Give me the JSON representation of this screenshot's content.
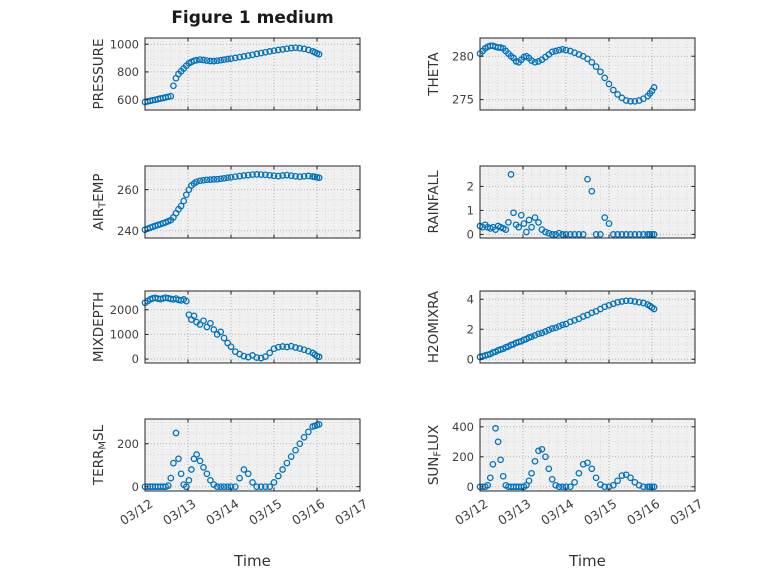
{
  "figure": {
    "title": "Figure 1 medium",
    "xlabel": "Time",
    "marker_color": "#0072BD",
    "axis_color": "#262626",
    "tick_label_color": "#404040",
    "label_color": "#333333",
    "plot_bg": "#f0f0f0",
    "major_grid_color": "#b5b5b5",
    "minor_grid_color": "#d9d9d9",
    "xtick_labels": [
      "03/12",
      "03/13",
      "03/14",
      "03/15",
      "03/16",
      "03/17"
    ],
    "x_minor_step": 0.2
  },
  "x_days": [
    0,
    0.06,
    0.12,
    0.18,
    0.24,
    0.3,
    0.36,
    0.42,
    0.48,
    0.54,
    0.6,
    0.66,
    0.72,
    0.78,
    0.84,
    0.9,
    0.96,
    1.02,
    1.08,
    1.14,
    1.2,
    1.28,
    1.36,
    1.44,
    1.52,
    1.6,
    1.68,
    1.76,
    1.84,
    1.92,
    2,
    2.1,
    2.2,
    2.3,
    2.4,
    2.5,
    2.6,
    2.7,
    2.8,
    2.9,
    3,
    3.1,
    3.2,
    3.3,
    3.4,
    3.5,
    3.6,
    3.7,
    3.8,
    3.9,
    3.95,
    4,
    4.05
  ],
  "chart_data": [
    {
      "id": "pressure",
      "type": "scatter",
      "ylabel": {
        "pre": "PRESSURE",
        "sub": "",
        "post": ""
      },
      "ylim": [
        525,
        1045
      ],
      "yticks": [
        600,
        800,
        1000
      ],
      "y_minor_step": 50,
      "xlim": [
        0,
        5
      ],
      "xticks": [
        0,
        1,
        2,
        3,
        4,
        5
      ],
      "show_xtick_labels": false,
      "y": [
        583,
        587,
        591,
        595,
        599,
        604,
        608,
        612,
        616,
        620,
        625,
        700,
        755,
        785,
        805,
        825,
        845,
        862,
        872,
        880,
        885,
        889,
        886,
        882,
        879,
        878,
        881,
        885,
        889,
        893,
        896,
        901,
        906,
        912,
        918,
        924,
        930,
        936,
        942,
        948,
        953,
        958,
        963,
        968,
        972,
        975,
        971,
        966,
        959,
        949,
        941,
        934,
        928
      ]
    },
    {
      "id": "theta",
      "type": "scatter",
      "ylabel": {
        "pre": "THETA",
        "sub": "",
        "post": ""
      },
      "ylim": [
        273.8,
        282.1
      ],
      "yticks": [
        275,
        280
      ],
      "y_minor_step": 1,
      "xlim": [
        0,
        5
      ],
      "xticks": [
        0,
        1,
        2,
        3,
        4,
        5
      ],
      "show_xtick_labels": false,
      "y": [
        280.3,
        280.6,
        280.9,
        281.1,
        281.2,
        281.2,
        281.1,
        281.0,
        281.0,
        280.9,
        280.6,
        280.3,
        280.0,
        279.8,
        279.4,
        279.3,
        279.6,
        279.9,
        280.0,
        279.8,
        279.5,
        279.3,
        279.4,
        279.6,
        279.9,
        280.2,
        280.5,
        280.6,
        280.7,
        280.8,
        280.7,
        280.6,
        280.4,
        280.2,
        280.0,
        279.7,
        279.3,
        278.8,
        278.2,
        277.5,
        276.8,
        276.1,
        275.6,
        275.2,
        274.9,
        274.8,
        274.8,
        274.9,
        275.1,
        275.4,
        275.7,
        276.0,
        276.4
      ]
    },
    {
      "id": "airtemp",
      "type": "scatter",
      "ylabel": {
        "pre": "AIR",
        "sub": "T",
        "post": "EMP"
      },
      "ylim": [
        236.5,
        271.5
      ],
      "yticks": [
        240,
        260
      ],
      "y_minor_step": 5,
      "xlim": [
        0,
        5
      ],
      "xticks": [
        0,
        1,
        2,
        3,
        4,
        5
      ],
      "show_xtick_labels": false,
      "y": [
        240.5,
        241.0,
        241.5,
        242.0,
        242.4,
        242.8,
        243.2,
        243.7,
        244.1,
        244.6,
        245.2,
        246.5,
        248.5,
        250.5,
        252.0,
        254.5,
        257.5,
        260.0,
        262.0,
        263.0,
        263.8,
        264.3,
        264.6,
        264.8,
        264.9,
        265.0,
        265.1,
        265.3,
        265.5,
        265.8,
        266.0,
        266.3,
        266.6,
        266.9,
        267.1,
        267.3,
        267.4,
        267.3,
        267.2,
        267.0,
        266.8,
        266.6,
        266.9,
        267.1,
        266.8,
        266.5,
        266.3,
        266.5,
        266.7,
        266.4,
        266.2,
        266.0,
        265.8
      ]
    },
    {
      "id": "rainfall",
      "type": "scatter",
      "ylabel": {
        "pre": "RAINFALL",
        "sub": "",
        "post": ""
      },
      "ylim": [
        -0.15,
        2.85
      ],
      "yticks": [
        0,
        1,
        2
      ],
      "y_minor_step": 0.5,
      "xlim": [
        0,
        5
      ],
      "xticks": [
        0,
        1,
        2,
        3,
        4,
        5
      ],
      "show_xtick_labels": false,
      "y": [
        0.35,
        0.3,
        0.4,
        0.3,
        0.25,
        0.3,
        0.2,
        0.35,
        0.3,
        0.25,
        0.2,
        0.5,
        2.5,
        0.9,
        0.4,
        0.3,
        0.8,
        0.45,
        0.1,
        0.6,
        0.3,
        0.7,
        0.5,
        0.2,
        0.1,
        0.05,
        0,
        0,
        0.05,
        0,
        0,
        0,
        0,
        0,
        0,
        2.3,
        1.8,
        0,
        0,
        0.7,
        0.45,
        0,
        0,
        0,
        0,
        0,
        0,
        0,
        0,
        0,
        0,
        0,
        0
      ]
    },
    {
      "id": "mixdepth",
      "type": "scatter",
      "ylabel": {
        "pre": "MIXDEPTH",
        "sub": "",
        "post": ""
      },
      "ylim": [
        -160,
        2760
      ],
      "yticks": [
        0,
        1000,
        2000
      ],
      "y_minor_step": 500,
      "xlim": [
        0,
        5
      ],
      "xticks": [
        0,
        1,
        2,
        3,
        4,
        5
      ],
      "show_xtick_labels": false,
      "y": [
        2280,
        2350,
        2420,
        2460,
        2480,
        2450,
        2430,
        2460,
        2490,
        2470,
        2440,
        2420,
        2450,
        2400,
        2380,
        2420,
        2350,
        1800,
        1600,
        1750,
        1500,
        1400,
        1550,
        1300,
        1450,
        1200,
        1000,
        1100,
        850,
        650,
        500,
        300,
        200,
        120,
        80,
        150,
        60,
        40,
        100,
        250,
        420,
        480,
        510,
        490,
        520,
        470,
        430,
        380,
        320,
        250,
        180,
        120,
        90
      ]
    },
    {
      "id": "h2omixra",
      "type": "scatter",
      "ylabel": {
        "pre": "H2OMIXRA",
        "sub": "",
        "post": ""
      },
      "ylim": [
        -0.25,
        4.55
      ],
      "yticks": [
        0,
        2,
        4
      ],
      "y_minor_step": 0.5,
      "xlim": [
        0,
        5
      ],
      "xticks": [
        0,
        1,
        2,
        3,
        4,
        5
      ],
      "show_xtick_labels": false,
      "y": [
        0.15,
        0.2,
        0.25,
        0.3,
        0.35,
        0.45,
        0.5,
        0.6,
        0.65,
        0.7,
        0.8,
        0.85,
        0.95,
        1.0,
        1.1,
        1.15,
        1.2,
        1.3,
        1.35,
        1.45,
        1.5,
        1.6,
        1.7,
        1.75,
        1.85,
        1.95,
        2.05,
        2.1,
        2.2,
        2.3,
        2.35,
        2.5,
        2.6,
        2.7,
        2.85,
        2.95,
        3.1,
        3.2,
        3.35,
        3.5,
        3.6,
        3.7,
        3.8,
        3.85,
        3.9,
        3.9,
        3.85,
        3.8,
        3.75,
        3.65,
        3.55,
        3.45,
        3.35
      ]
    },
    {
      "id": "terrmsl",
      "type": "scatter",
      "ylabel": {
        "pre": "TERR",
        "sub": "M",
        "post": "SL"
      },
      "ylim": [
        -20,
        315
      ],
      "yticks": [
        0,
        200
      ],
      "y_minor_step": 50,
      "xlim": [
        0,
        5
      ],
      "xticks": [
        0,
        1,
        2,
        3,
        4,
        5
      ],
      "show_xtick_labels": true,
      "y": [
        0,
        0,
        0,
        0,
        0,
        0,
        0,
        0,
        0,
        5,
        40,
        110,
        250,
        130,
        60,
        10,
        0,
        30,
        80,
        130,
        150,
        120,
        90,
        60,
        30,
        10,
        0,
        0,
        0,
        0,
        0,
        0,
        40,
        80,
        60,
        20,
        0,
        0,
        0,
        0,
        20,
        50,
        80,
        110,
        140,
        170,
        200,
        230,
        255,
        280,
        283,
        287,
        290
      ]
    },
    {
      "id": "sunflux",
      "type": "scatter",
      "ylabel": {
        "pre": "SUN",
        "sub": "F",
        "post": "LUX"
      },
      "ylim": [
        -28,
        452
      ],
      "yticks": [
        0,
        200,
        400
      ],
      "y_minor_step": 100,
      "xlim": [
        0,
        5
      ],
      "xticks": [
        0,
        1,
        2,
        3,
        4,
        5
      ],
      "show_xtick_labels": true,
      "y": [
        0,
        0,
        0,
        10,
        60,
        150,
        390,
        300,
        180,
        70,
        10,
        0,
        0,
        0,
        0,
        0,
        0,
        0,
        10,
        40,
        90,
        170,
        240,
        250,
        200,
        120,
        50,
        10,
        0,
        0,
        0,
        0,
        30,
        90,
        150,
        160,
        120,
        60,
        15,
        0,
        0,
        10,
        40,
        75,
        80,
        60,
        30,
        10,
        0,
        0,
        0,
        0,
        0
      ]
    }
  ]
}
